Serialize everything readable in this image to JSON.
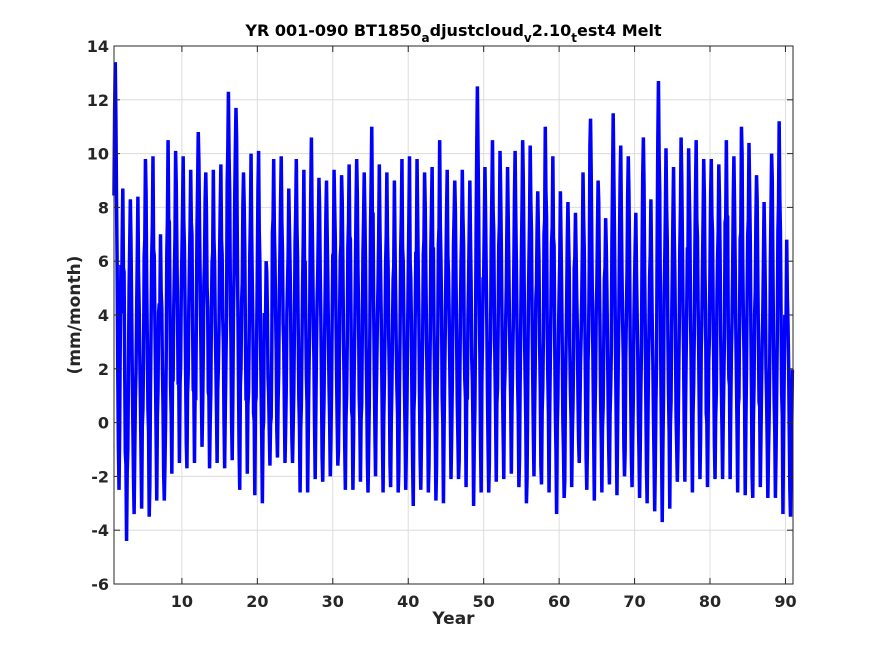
{
  "chart_data": {
    "type": "line",
    "title": {
      "parts": [
        {
          "text": "YR 001-090 BT1850",
          "sub": false
        },
        {
          "text": "a",
          "sub": true
        },
        {
          "text": "djustcloud",
          "sub": false
        },
        {
          "text": "v",
          "sub": true
        },
        {
          "text": "2.10",
          "sub": false
        },
        {
          "text": "t",
          "sub": true
        },
        {
          "text": "est4 Melt",
          "sub": false
        }
      ]
    },
    "xlabel": "Year",
    "ylabel": "(mm/month)",
    "xlim": [
      1,
      91
    ],
    "ylim": [
      -6,
      14
    ],
    "xticks": [
      10,
      20,
      30,
      40,
      50,
      60,
      70,
      80,
      90
    ],
    "yticks": [
      -6,
      -4,
      -2,
      0,
      2,
      4,
      6,
      8,
      10,
      12,
      14
    ],
    "grid": true,
    "series": [
      {
        "color": "#0000ff",
        "sampling": "monthly",
        "annual_max": [
          13.4,
          8.7,
          8.3,
          8.4,
          9.8,
          9.9,
          7.0,
          10.5,
          10.1,
          9.9,
          9.4,
          10.8,
          9.3,
          9.4,
          9.6,
          12.3,
          11.7,
          9.3,
          10.0,
          10.1,
          6.0,
          9.8,
          9.9,
          8.7,
          9.8,
          9.4,
          10.6,
          9.1,
          9.0,
          9.4,
          9.2,
          9.6,
          9.8,
          9.3,
          11.0,
          9.6,
          9.3,
          9.0,
          9.8,
          9.9,
          9.8,
          9.3,
          9.5,
          10.5,
          9.4,
          9.0,
          9.4,
          9.0,
          12.5,
          9.5,
          10.5,
          10.1,
          9.5,
          10.1,
          10.5,
          10.3,
          8.6,
          11.0,
          9.9,
          8.6,
          8.2,
          7.8,
          9.3,
          11.3,
          9.0,
          7.6,
          11.5,
          10.3,
          9.9,
          7.8,
          10.6,
          8.3,
          12.7,
          10.2,
          9.5,
          10.6,
          10.2,
          10.5,
          9.8,
          9.8,
          9.6,
          10.5,
          9.9,
          11.0,
          10.4,
          9.2,
          8.2,
          10.0,
          11.2,
          6.8
        ],
        "annual_min": [
          -2.5,
          -4.4,
          -3.4,
          -3.2,
          -3.5,
          -2.9,
          -2.9,
          -1.9,
          -1.5,
          -1.7,
          -1.5,
          -0.9,
          -1.7,
          -1.5,
          -1.7,
          -1.4,
          -2.5,
          -1.9,
          -2.7,
          -3.0,
          -1.6,
          -1.3,
          -1.5,
          -1.5,
          -2.6,
          -2.6,
          -2.1,
          -2.2,
          -2.0,
          -1.6,
          -2.5,
          -2.5,
          -2.2,
          -2.6,
          -2.0,
          -2.6,
          -2.4,
          -2.6,
          -2.5,
          -3.1,
          -2.5,
          -2.6,
          -2.9,
          -3.0,
          -2.1,
          -2.1,
          -2.4,
          -3.1,
          -2.6,
          -2.6,
          -2.2,
          -2.1,
          -1.9,
          -2.4,
          -3.0,
          -2.0,
          -2.3,
          -2.6,
          -3.4,
          -2.8,
          -2.4,
          -1.5,
          -2.5,
          -2.9,
          -2.6,
          -2.3,
          -2.7,
          -2.0,
          -2.4,
          -2.8,
          -3.0,
          -3.3,
          -3.7,
          -3.2,
          -2.2,
          -2.2,
          -2.6,
          -2.1,
          -2.4,
          -2.1,
          -2.1,
          -2.1,
          -2.6,
          -2.7,
          -2.8,
          -2.4,
          -2.8,
          -2.8,
          -3.4,
          -3.5
        ]
      }
    ]
  }
}
